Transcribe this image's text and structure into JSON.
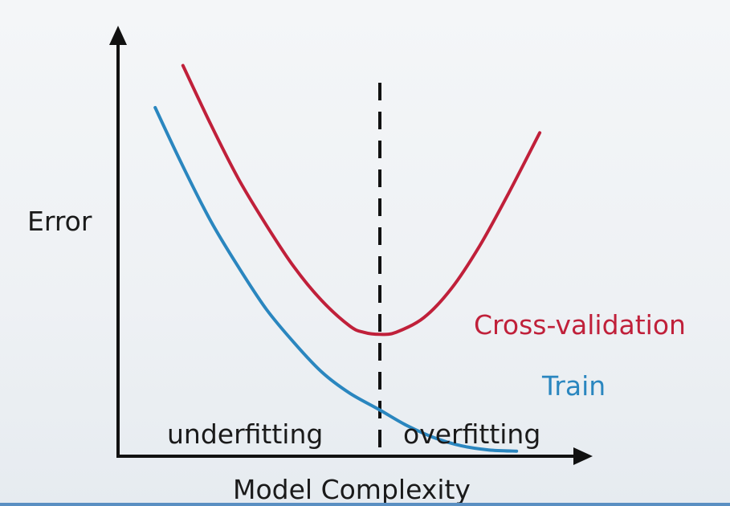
{
  "chart_data": {
    "type": "line",
    "xlabel": "Model Complexity",
    "ylabel": "Error",
    "xlim": [
      0,
      100
    ],
    "ylim": [
      0,
      100
    ],
    "divider": {
      "x": 56.5,
      "style": "dashed",
      "left_region_label": "underfitting",
      "right_region_label": "overfitting"
    },
    "series": [
      {
        "name": "Cross-validation",
        "color": "#c0203a",
        "x": [
          14,
          20,
          26,
          32,
          38,
          44,
          50,
          53,
          56.5,
          60,
          66,
          72,
          78,
          84,
          91
        ],
        "y": [
          93,
          79,
          66,
          55,
          45,
          37,
          31,
          29.5,
          29,
          29.5,
          33,
          40,
          50,
          62,
          77
        ]
      },
      {
        "name": "Train",
        "color": "#2a86bf",
        "x": [
          8,
          14,
          20,
          26,
          32,
          38,
          44,
          50,
          56.5,
          62,
          68,
          74,
          80,
          86
        ],
        "y": [
          83,
          69,
          56,
          45,
          35,
          27,
          20,
          15,
          11,
          7.5,
          4.5,
          2.5,
          1.5,
          1.2
        ]
      }
    ]
  },
  "labels": {
    "series_red": "Cross-validation",
    "series_blue": "Train",
    "ylabel": "Error",
    "xlabel": "Model Complexity",
    "underfitting": "underfitting",
    "overfitting": "overfitting"
  },
  "colors": {
    "axis": "#111111",
    "cv": "#c0203a",
    "train": "#2a86bf"
  }
}
